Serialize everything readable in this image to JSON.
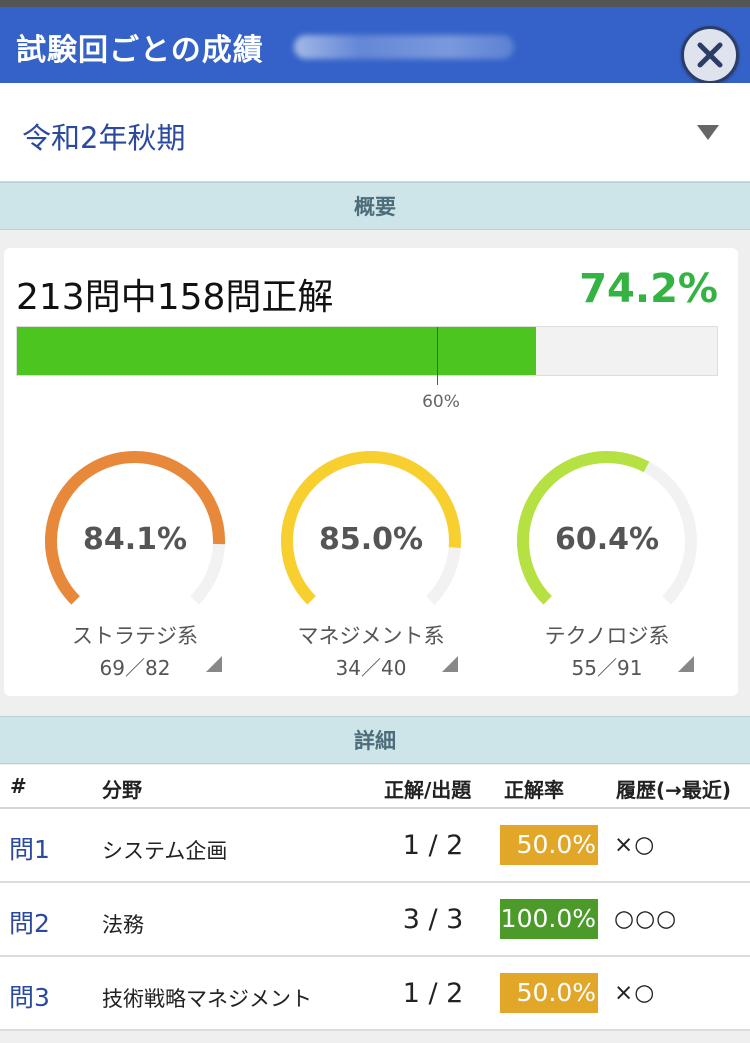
{
  "header": {
    "title": "試験回ごとの成績",
    "close_symbol": "✕"
  },
  "selector": {
    "value": "令和2年秋期"
  },
  "overview": {
    "section_label": "概要",
    "summary": "213問中158問正解",
    "rate_text": "74.2%",
    "rate": 74.2,
    "pass_line": 60,
    "pass_line_label": "60%"
  },
  "categories": [
    {
      "pct_text": "84.1%",
      "pct": 84.1,
      "name": "ストラテジ系",
      "score": "69／82",
      "color": "#e8883a"
    },
    {
      "pct_text": "85.0%",
      "pct": 85.0,
      "name": "マネジメント系",
      "score": "34／40",
      "color": "#f7cf2f"
    },
    {
      "pct_text": "60.4%",
      "pct": 60.4,
      "name": "テクノロジ系",
      "score": "55／91",
      "color": "#b5e143"
    }
  ],
  "details": {
    "section_label": "詳細",
    "columns": {
      "num": "#",
      "field": "分野",
      "frac": "正解/出題",
      "rate": "正解率",
      "history": "履歴(→最近)"
    },
    "rows": [
      {
        "num": "問1",
        "field": "システム企画",
        "frac": "1 / 2",
        "rate": "50.0%",
        "rate_color": "#e2a728",
        "history": "×○"
      },
      {
        "num": "問2",
        "field": "法務",
        "frac": "3 / 3",
        "rate": "100.0%",
        "rate_color": "#4c9a2a",
        "history": "○○○"
      },
      {
        "num": "問3",
        "field": "技術戦略マネジメント",
        "frac": "1 / 2",
        "rate": "50.0%",
        "rate_color": "#e2a728",
        "history": "×○"
      }
    ]
  }
}
